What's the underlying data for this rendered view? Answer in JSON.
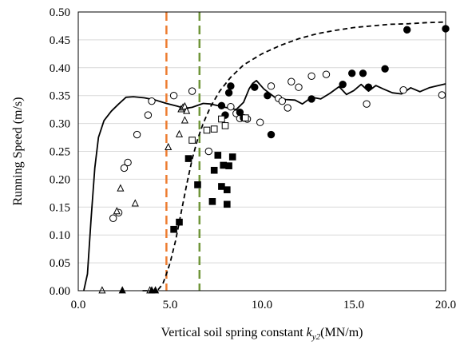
{
  "chart_data": {
    "type": "scatter",
    "title": "",
    "xlabel": {
      "main": "Vertical soil spring constant ",
      "symbol": "k",
      "subscript": "y2",
      "unit": "(MN/m)"
    },
    "ylabel": "Running Speed (m/s)",
    "xlim": [
      0,
      20
    ],
    "ylim": [
      0,
      0.5
    ],
    "x_ticks": [
      "0.0",
      "5.0",
      "10.0",
      "15.0",
      "20.0"
    ],
    "y_ticks": [
      "0.00",
      "0.05",
      "0.10",
      "0.15",
      "0.20",
      "0.25",
      "0.30",
      "0.35",
      "0.40",
      "0.45",
      "0.50"
    ],
    "grid": "horizontal",
    "vlines": [
      {
        "x": 4.8,
        "color": "#ED7D31",
        "style": "dashed"
      },
      {
        "x": 6.6,
        "color": "#70963A",
        "style": "dashed"
      }
    ],
    "curves": [
      {
        "style": "solid",
        "color": "#000000",
        "points": [
          [
            0.3,
            0.0
          ],
          [
            0.5,
            0.03
          ],
          [
            0.7,
            0.13
          ],
          [
            0.9,
            0.22
          ],
          [
            1.1,
            0.275
          ],
          [
            1.4,
            0.305
          ],
          [
            1.8,
            0.322
          ],
          [
            2.2,
            0.335
          ],
          [
            2.6,
            0.347
          ],
          [
            3.0,
            0.348
          ],
          [
            3.6,
            0.346
          ],
          [
            4.2,
            0.342
          ],
          [
            4.8,
            0.336
          ],
          [
            5.4,
            0.331
          ],
          [
            5.8,
            0.327
          ],
          [
            6.2,
            0.329
          ],
          [
            6.8,
            0.336
          ],
          [
            7.2,
            0.335
          ],
          [
            7.6,
            0.332
          ],
          [
            8.0,
            0.329
          ],
          [
            8.6,
            0.325
          ],
          [
            9.0,
            0.338
          ],
          [
            9.3,
            0.362
          ],
          [
            9.5,
            0.372
          ],
          [
            9.7,
            0.377
          ],
          [
            10.1,
            0.362
          ],
          [
            10.7,
            0.347
          ],
          [
            11.3,
            0.343
          ],
          [
            11.8,
            0.342
          ],
          [
            12.2,
            0.335
          ],
          [
            12.7,
            0.347
          ],
          [
            13.2,
            0.344
          ],
          [
            13.7,
            0.354
          ],
          [
            14.2,
            0.366
          ],
          [
            14.6,
            0.352
          ],
          [
            15.0,
            0.359
          ],
          [
            15.4,
            0.37
          ],
          [
            15.8,
            0.358
          ],
          [
            16.2,
            0.368
          ],
          [
            16.6,
            0.362
          ],
          [
            17.1,
            0.355
          ],
          [
            17.6,
            0.353
          ],
          [
            18.1,
            0.364
          ],
          [
            18.6,
            0.357
          ],
          [
            19.1,
            0.364
          ],
          [
            19.6,
            0.368
          ],
          [
            20.0,
            0.371
          ]
        ]
      },
      {
        "style": "dashed",
        "color": "#000000",
        "points": [
          [
            3.5,
            0.0
          ],
          [
            4.3,
            0.0
          ],
          [
            4.6,
            0.012
          ],
          [
            4.8,
            0.03
          ],
          [
            5.0,
            0.05
          ],
          [
            5.3,
            0.09
          ],
          [
            5.6,
            0.14
          ],
          [
            5.9,
            0.19
          ],
          [
            6.2,
            0.236
          ],
          [
            6.5,
            0.272
          ],
          [
            6.8,
            0.3
          ],
          [
            7.2,
            0.33
          ],
          [
            7.7,
            0.358
          ],
          [
            8.3,
            0.383
          ],
          [
            9.0,
            0.405
          ],
          [
            10.0,
            0.425
          ],
          [
            11.0,
            0.44
          ],
          [
            12.0,
            0.452
          ],
          [
            13.0,
            0.461
          ],
          [
            14.0,
            0.467
          ],
          [
            15.0,
            0.472
          ],
          [
            16.0,
            0.475
          ],
          [
            17.0,
            0.478
          ],
          [
            18.0,
            0.479
          ],
          [
            19.0,
            0.481
          ],
          [
            20.0,
            0.482
          ]
        ]
      }
    ],
    "series": [
      {
        "marker": "open-circle",
        "points": [
          [
            1.9,
            0.13
          ],
          [
            2.2,
            0.14
          ],
          [
            2.5,
            0.22
          ],
          [
            2.7,
            0.23
          ],
          [
            3.2,
            0.28
          ],
          [
            3.8,
            0.315
          ],
          [
            4.0,
            0.34
          ],
          [
            5.2,
            0.35
          ],
          [
            6.2,
            0.358
          ],
          [
            7.1,
            0.25
          ],
          [
            8.3,
            0.33
          ],
          [
            8.6,
            0.318
          ],
          [
            8.8,
            0.309
          ],
          [
            9.2,
            0.308
          ],
          [
            9.9,
            0.302
          ],
          [
            10.5,
            0.367
          ],
          [
            10.9,
            0.345
          ],
          [
            11.1,
            0.34
          ],
          [
            11.4,
            0.328
          ],
          [
            11.6,
            0.375
          ],
          [
            12.0,
            0.365
          ],
          [
            12.7,
            0.385
          ],
          [
            13.5,
            0.388
          ],
          [
            15.7,
            0.335
          ],
          [
            17.7,
            0.36
          ],
          [
            19.8,
            0.351
          ]
        ]
      },
      {
        "marker": "filled-circle",
        "points": [
          [
            7.8,
            0.332
          ],
          [
            8.0,
            0.315
          ],
          [
            8.2,
            0.355
          ],
          [
            8.3,
            0.367
          ],
          [
            8.8,
            0.32
          ],
          [
            9.0,
            0.31
          ],
          [
            9.6,
            0.365
          ],
          [
            10.3,
            0.35
          ],
          [
            10.5,
            0.28
          ],
          [
            12.7,
            0.344
          ],
          [
            14.4,
            0.37
          ],
          [
            14.9,
            0.39
          ],
          [
            15.5,
            0.39
          ],
          [
            15.8,
            0.365
          ],
          [
            16.7,
            0.398
          ],
          [
            17.9,
            0.468
          ],
          [
            20.0,
            0.47
          ]
        ]
      },
      {
        "marker": "open-square",
        "points": [
          [
            6.2,
            0.27
          ],
          [
            7.0,
            0.288
          ],
          [
            7.4,
            0.29
          ],
          [
            7.8,
            0.308
          ],
          [
            8.0,
            0.296
          ],
          [
            9.1,
            0.31
          ]
        ]
      },
      {
        "marker": "filled-square",
        "points": [
          [
            5.2,
            0.11
          ],
          [
            5.5,
            0.123
          ],
          [
            6.0,
            0.237
          ],
          [
            6.5,
            0.19
          ],
          [
            7.3,
            0.16
          ],
          [
            7.4,
            0.216
          ],
          [
            7.6,
            0.243
          ],
          [
            7.8,
            0.187
          ],
          [
            7.9,
            0.225
          ],
          [
            8.1,
            0.181
          ],
          [
            8.1,
            0.155
          ],
          [
            8.2,
            0.224
          ],
          [
            8.4,
            0.24
          ]
        ]
      },
      {
        "marker": "open-triangle",
        "points": [
          [
            1.3,
            0.0
          ],
          [
            2.1,
            0.142
          ],
          [
            2.3,
            0.183
          ],
          [
            3.1,
            0.156
          ],
          [
            4.9,
            0.257
          ],
          [
            5.5,
            0.28
          ],
          [
            5.6,
            0.325
          ],
          [
            5.7,
            0.328
          ],
          [
            5.8,
            0.33
          ],
          [
            5.8,
            0.305
          ],
          [
            5.9,
            0.322
          ],
          [
            3.9,
            0.0
          ]
        ]
      },
      {
        "marker": "filled-triangle",
        "points": [
          [
            2.4,
            0.0
          ],
          [
            4.0,
            0.0
          ],
          [
            4.2,
            0.0
          ]
        ]
      }
    ]
  }
}
